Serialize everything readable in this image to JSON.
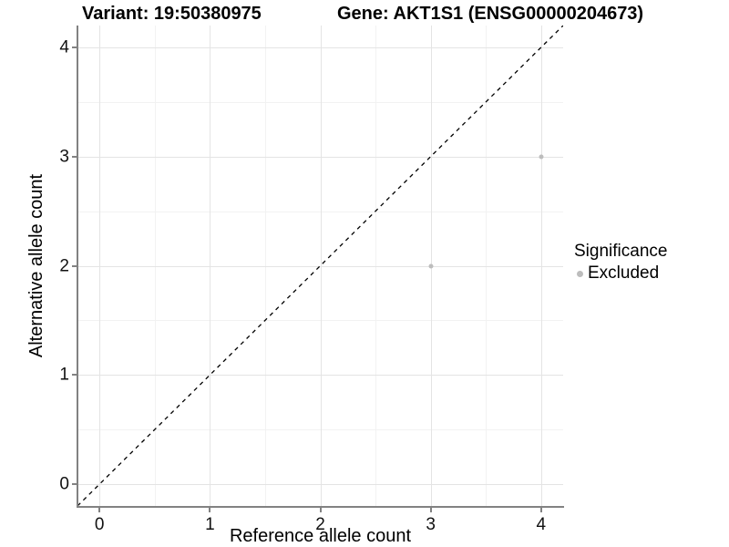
{
  "titles": {
    "variant": "Variant: 19:50380975",
    "gene": "Gene: AKT1S1 (ENSG00000204673)"
  },
  "legend": {
    "title": "Significance",
    "position": "right",
    "items": [
      {
        "label": "Excluded",
        "color": "#bdbdbd"
      }
    ]
  },
  "chart_data": {
    "type": "scatter",
    "xlabel": "Reference allele count",
    "ylabel": "Alternative allele count",
    "xlim": [
      -0.2,
      4.2
    ],
    "ylim": [
      -0.2,
      4.2
    ],
    "x_ticks": [
      0,
      1,
      2,
      3,
      4
    ],
    "y_ticks": [
      0,
      1,
      2,
      3,
      4
    ],
    "x_minor_ticks": [
      0.5,
      1.5,
      2.5,
      3.5
    ],
    "y_minor_ticks": [
      0.5,
      1.5,
      2.5,
      3.5
    ],
    "grid": "major+minor",
    "legend_position": "right",
    "series": [
      {
        "name": "Excluded",
        "color": "#bdbdbd",
        "points": [
          {
            "x": 3,
            "y": 2
          },
          {
            "x": 4,
            "y": 3
          }
        ]
      }
    ],
    "reference_line": {
      "kind": "identity",
      "style": "dashed",
      "color": "#000000",
      "from": {
        "x": -0.2,
        "y": -0.2
      },
      "to": {
        "x": 4.2,
        "y": 4.2
      }
    }
  },
  "style_colors": {
    "axis_line": "#828282",
    "grid_major": "#e4e4e4",
    "grid_minor": "#f2f2f2",
    "point": "#bdbdbd",
    "background": "#ffffff"
  }
}
